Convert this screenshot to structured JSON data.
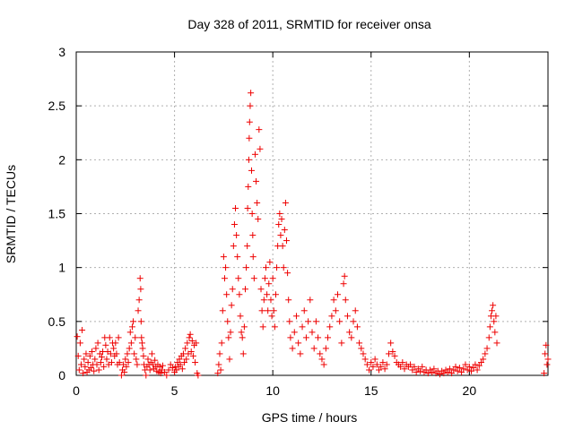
{
  "chart_data": {
    "type": "scatter",
    "title": "Day 328 of 2011, SRMTID for receiver onsa",
    "xlabel": "GPS time / hours",
    "ylabel": "SRMTID / TECUs",
    "xlim": [
      0,
      24
    ],
    "ylim": [
      0,
      3
    ],
    "x_ticks": [
      "0",
      "5",
      "10",
      "15",
      "20"
    ],
    "y_ticks": [
      "0",
      "0.5",
      "1",
      "1.5",
      "2",
      "2.5",
      "3"
    ],
    "grid": true,
    "marker": "+",
    "series": [
      {
        "color": "#ee0000",
        "points": [
          [
            0.05,
            0.36
          ],
          [
            0.1,
            0.18
          ],
          [
            0.15,
            0.05
          ],
          [
            0.2,
            0.3
          ],
          [
            0.25,
            0.1
          ],
          [
            0.3,
            0.42
          ],
          [
            0.35,
            0.02
          ],
          [
            0.4,
            0.15
          ],
          [
            0.45,
            0.08
          ],
          [
            0.5,
            0.2
          ],
          [
            0.55,
            0.03
          ],
          [
            0.6,
            0.12
          ],
          [
            0.65,
            0.05
          ],
          [
            0.7,
            0.18
          ],
          [
            0.75,
            0.07
          ],
          [
            0.8,
            0.22
          ],
          [
            0.85,
            0.1
          ],
          [
            0.9,
            0.04
          ],
          [
            0.95,
            0.15
          ],
          [
            1.0,
            0.25
          ],
          [
            1.05,
            0.1
          ],
          [
            1.1,
            0.3
          ],
          [
            1.15,
            0.05
          ],
          [
            1.2,
            0.2
          ],
          [
            1.25,
            0.12
          ],
          [
            1.3,
            0.17
          ],
          [
            1.35,
            0.22
          ],
          [
            1.4,
            0.08
          ],
          [
            1.45,
            0.35
          ],
          [
            1.5,
            0.28
          ],
          [
            1.55,
            0.15
          ],
          [
            1.6,
            0.22
          ],
          [
            1.65,
            0.1
          ],
          [
            1.7,
            0.35
          ],
          [
            1.75,
            0.2
          ],
          [
            1.8,
            0.12
          ],
          [
            1.85,
            0.3
          ],
          [
            1.9,
            0.25
          ],
          [
            1.95,
            0.18
          ],
          [
            2.0,
            0.3
          ],
          [
            2.05,
            0.2
          ],
          [
            2.1,
            0.1
          ],
          [
            2.15,
            0.35
          ],
          [
            2.2,
            0.12
          ],
          [
            2.3,
            0.0
          ],
          [
            2.35,
            0.05
          ],
          [
            2.4,
            0.1
          ],
          [
            2.45,
            0.03
          ],
          [
            2.5,
            0.15
          ],
          [
            2.55,
            0.08
          ],
          [
            2.6,
            0.2
          ],
          [
            2.65,
            0.12
          ],
          [
            2.7,
            0.25
          ],
          [
            2.75,
            0.4
          ],
          [
            2.8,
            0.3
          ],
          [
            2.85,
            0.45
          ],
          [
            2.9,
            0.5
          ],
          [
            2.95,
            0.2
          ],
          [
            3.0,
            0.35
          ],
          [
            3.05,
            0.15
          ],
          [
            3.1,
            0.1
          ],
          [
            3.15,
            0.6
          ],
          [
            3.2,
            0.7
          ],
          [
            3.25,
            0.9
          ],
          [
            3.28,
            0.8
          ],
          [
            3.3,
            0.5
          ],
          [
            3.32,
            0.35
          ],
          [
            3.35,
            0.3
          ],
          [
            3.38,
            0.25
          ],
          [
            3.42,
            0.18
          ],
          [
            3.45,
            0.1
          ],
          [
            3.5,
            0.05
          ],
          [
            3.55,
            0.0
          ],
          [
            3.6,
            0.08
          ],
          [
            3.65,
            0.15
          ],
          [
            3.7,
            0.1
          ],
          [
            3.75,
            0.05
          ],
          [
            3.8,
            0.12
          ],
          [
            3.85,
            0.2
          ],
          [
            3.9,
            0.1
          ],
          [
            3.95,
            0.06
          ],
          [
            4.0,
            0.14
          ],
          [
            4.05,
            0.08
          ],
          [
            4.1,
            0.04
          ],
          [
            4.15,
            0.1
          ],
          [
            4.2,
            0.03
          ],
          [
            4.25,
            0.08
          ],
          [
            4.3,
            0.02
          ],
          [
            4.35,
            0.05
          ],
          [
            4.4,
            0.09
          ],
          [
            4.5,
            0.03
          ],
          [
            4.6,
            0.0
          ],
          [
            4.7,
            0.05
          ],
          [
            4.8,
            0.1
          ],
          [
            4.9,
            0.07
          ],
          [
            5.0,
            0.03
          ],
          [
            5.05,
            0.08
          ],
          [
            5.1,
            0.05
          ],
          [
            5.15,
            0.12
          ],
          [
            5.2,
            0.08
          ],
          [
            5.25,
            0.15
          ],
          [
            5.3,
            0.1
          ],
          [
            5.35,
            0.18
          ],
          [
            5.4,
            0.06
          ],
          [
            5.45,
            0.2
          ],
          [
            5.5,
            0.12
          ],
          [
            5.55,
            0.25
          ],
          [
            5.6,
            0.15
          ],
          [
            5.65,
            0.3
          ],
          [
            5.7,
            0.2
          ],
          [
            5.75,
            0.35
          ],
          [
            5.8,
            0.38
          ],
          [
            5.85,
            0.22
          ],
          [
            5.9,
            0.32
          ],
          [
            5.95,
            0.18
          ],
          [
            6.0,
            0.28
          ],
          [
            6.05,
            0.12
          ],
          [
            6.1,
            0.3
          ],
          [
            6.15,
            0.02
          ],
          [
            6.2,
            0.0
          ],
          [
            7.2,
            0.02
          ],
          [
            7.25,
            0.1
          ],
          [
            7.3,
            0.2
          ],
          [
            7.35,
            0.05
          ],
          [
            7.4,
            0.3
          ],
          [
            7.45,
            0.6
          ],
          [
            7.5,
            1.1
          ],
          [
            7.55,
            0.9
          ],
          [
            7.6,
            1.0
          ],
          [
            7.65,
            0.75
          ],
          [
            7.7,
            0.5
          ],
          [
            7.75,
            0.35
          ],
          [
            7.8,
            0.15
          ],
          [
            7.85,
            0.4
          ],
          [
            7.9,
            0.65
          ],
          [
            7.95,
            0.8
          ],
          [
            8.0,
            1.2
          ],
          [
            8.05,
            1.4
          ],
          [
            8.1,
            1.55
          ],
          [
            8.15,
            1.3
          ],
          [
            8.2,
            1.1
          ],
          [
            8.25,
            0.9
          ],
          [
            8.3,
            0.75
          ],
          [
            8.35,
            0.55
          ],
          [
            8.4,
            0.4
          ],
          [
            8.45,
            0.35
          ],
          [
            8.5,
            0.2
          ],
          [
            8.55,
            0.45
          ],
          [
            8.6,
            0.8
          ],
          [
            8.65,
            1.0
          ],
          [
            8.7,
            1.2
          ],
          [
            8.72,
            1.55
          ],
          [
            8.75,
            1.75
          ],
          [
            8.78,
            2.0
          ],
          [
            8.8,
            2.2
          ],
          [
            8.82,
            2.35
          ],
          [
            8.85,
            2.5
          ],
          [
            8.88,
            2.62
          ],
          [
            8.92,
            1.9
          ],
          [
            8.95,
            1.5
          ],
          [
            8.98,
            1.3
          ],
          [
            9.0,
            1.1
          ],
          [
            9.05,
            0.9
          ],
          [
            9.1,
            2.05
          ],
          [
            9.15,
            1.8
          ],
          [
            9.2,
            1.6
          ],
          [
            9.25,
            1.45
          ],
          [
            9.3,
            2.28
          ],
          [
            9.35,
            2.1
          ],
          [
            9.4,
            0.8
          ],
          [
            9.45,
            0.6
          ],
          [
            9.5,
            0.45
          ],
          [
            9.55,
            0.7
          ],
          [
            9.6,
            0.9
          ],
          [
            9.65,
            1.0
          ],
          [
            9.7,
            0.75
          ],
          [
            9.75,
            0.6
          ],
          [
            9.8,
            0.85
          ],
          [
            9.85,
            1.05
          ],
          [
            9.9,
            0.7
          ],
          [
            9.95,
            0.55
          ],
          [
            10.0,
            0.9
          ],
          [
            10.05,
            0.6
          ],
          [
            10.1,
            0.45
          ],
          [
            10.15,
            0.75
          ],
          [
            10.2,
            1.0
          ],
          [
            10.25,
            1.2
          ],
          [
            10.3,
            1.4
          ],
          [
            10.35,
            1.5
          ],
          [
            10.4,
            1.3
          ],
          [
            10.45,
            1.45
          ],
          [
            10.5,
            1.2
          ],
          [
            10.55,
            1.0
          ],
          [
            10.6,
            1.35
          ],
          [
            10.65,
            1.6
          ],
          [
            10.7,
            1.25
          ],
          [
            10.75,
            0.95
          ],
          [
            10.8,
            0.7
          ],
          [
            10.85,
            0.5
          ],
          [
            10.9,
            0.35
          ],
          [
            11.0,
            0.25
          ],
          [
            11.1,
            0.4
          ],
          [
            11.2,
            0.55
          ],
          [
            11.3,
            0.3
          ],
          [
            11.4,
            0.2
          ],
          [
            11.5,
            0.45
          ],
          [
            11.6,
            0.6
          ],
          [
            11.7,
            0.35
          ],
          [
            11.8,
            0.5
          ],
          [
            11.9,
            0.7
          ],
          [
            12.0,
            0.4
          ],
          [
            12.1,
            0.25
          ],
          [
            12.2,
            0.5
          ],
          [
            12.3,
            0.35
          ],
          [
            12.4,
            0.2
          ],
          [
            12.5,
            0.15
          ],
          [
            12.6,
            0.1
          ],
          [
            12.7,
            0.25
          ],
          [
            12.8,
            0.35
          ],
          [
            12.9,
            0.45
          ],
          [
            13.0,
            0.55
          ],
          [
            13.1,
            0.7
          ],
          [
            13.2,
            0.6
          ],
          [
            13.3,
            0.75
          ],
          [
            13.4,
            0.5
          ],
          [
            13.5,
            0.3
          ],
          [
            13.6,
            0.85
          ],
          [
            13.65,
            0.92
          ],
          [
            13.7,
            0.7
          ],
          [
            13.8,
            0.55
          ],
          [
            13.9,
            0.4
          ],
          [
            14.0,
            0.35
          ],
          [
            14.1,
            0.5
          ],
          [
            14.2,
            0.6
          ],
          [
            14.3,
            0.45
          ],
          [
            14.4,
            0.3
          ],
          [
            14.5,
            0.25
          ],
          [
            14.6,
            0.2
          ],
          [
            14.7,
            0.15
          ],
          [
            14.8,
            0.1
          ],
          [
            14.9,
            0.05
          ],
          [
            15.0,
            0.12
          ],
          [
            15.1,
            0.08
          ],
          [
            15.2,
            0.15
          ],
          [
            15.3,
            0.1
          ],
          [
            15.4,
            0.05
          ],
          [
            15.5,
            0.08
          ],
          [
            15.6,
            0.12
          ],
          [
            15.7,
            0.06
          ],
          [
            15.8,
            0.1
          ],
          [
            15.9,
            0.2
          ],
          [
            16.0,
            0.3
          ],
          [
            16.1,
            0.22
          ],
          [
            16.2,
            0.18
          ],
          [
            16.3,
            0.12
          ],
          [
            16.4,
            0.1
          ],
          [
            16.5,
            0.08
          ],
          [
            16.6,
            0.12
          ],
          [
            16.7,
            0.06
          ],
          [
            16.8,
            0.1
          ],
          [
            16.9,
            0.08
          ],
          [
            17.0,
            0.1
          ],
          [
            17.1,
            0.05
          ],
          [
            17.2,
            0.08
          ],
          [
            17.3,
            0.03
          ],
          [
            17.4,
            0.06
          ],
          [
            17.5,
            0.04
          ],
          [
            17.6,
            0.08
          ],
          [
            17.7,
            0.03
          ],
          [
            17.8,
            0.05
          ],
          [
            17.9,
            0.02
          ],
          [
            18.0,
            0.05
          ],
          [
            18.1,
            0.03
          ],
          [
            18.2,
            0.06
          ],
          [
            18.3,
            0.02
          ],
          [
            18.4,
            0.04
          ],
          [
            18.5,
            0.01
          ],
          [
            18.6,
            0.04
          ],
          [
            18.7,
            0.02
          ],
          [
            18.8,
            0.05
          ],
          [
            18.9,
            0.03
          ],
          [
            19.0,
            0.06
          ],
          [
            19.1,
            0.02
          ],
          [
            19.2,
            0.05
          ],
          [
            19.3,
            0.08
          ],
          [
            19.4,
            0.04
          ],
          [
            19.5,
            0.07
          ],
          [
            19.6,
            0.03
          ],
          [
            19.7,
            0.06
          ],
          [
            19.8,
            0.1
          ],
          [
            19.9,
            0.05
          ],
          [
            20.0,
            0.08
          ],
          [
            20.1,
            0.04
          ],
          [
            20.2,
            0.07
          ],
          [
            20.3,
            0.1
          ],
          [
            20.4,
            0.05
          ],
          [
            20.5,
            0.09
          ],
          [
            20.6,
            0.12
          ],
          [
            20.7,
            0.15
          ],
          [
            20.8,
            0.2
          ],
          [
            20.9,
            0.25
          ],
          [
            21.0,
            0.35
          ],
          [
            21.05,
            0.45
          ],
          [
            21.1,
            0.55
          ],
          [
            21.15,
            0.6
          ],
          [
            21.2,
            0.65
          ],
          [
            21.25,
            0.5
          ],
          [
            21.3,
            0.4
          ],
          [
            21.35,
            0.55
          ],
          [
            21.4,
            0.3
          ],
          [
            23.8,
            0.02
          ],
          [
            23.85,
            0.2
          ],
          [
            23.9,
            0.28
          ],
          [
            23.95,
            0.1
          ],
          [
            24.0,
            0.15
          ]
        ]
      }
    ]
  }
}
